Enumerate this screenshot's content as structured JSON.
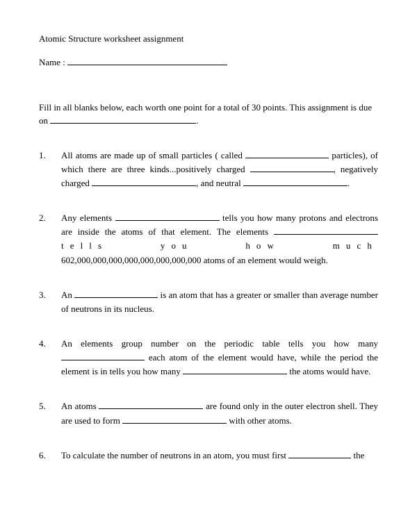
{
  "title": "Atomic Structure worksheet assignment",
  "name_label": "Name :",
  "instructions_line1": "Fill in all blanks below, each worth one point for a total of 30 points.  This",
  "instructions_line2_prefix": "assignment is due on ",
  "instructions_line2_suffix": ".",
  "questions": [
    {
      "num": "1.",
      "seg1": "All atoms are made up of small particles ( called ",
      "seg2": " particles), of which there are three kinds...positively charged ",
      "seg3": ", negatively charged ",
      "seg4": ", and neutral ",
      "seg5": "."
    },
    {
      "num": "2.",
      "seg1": "Any elements ",
      "seg2": " tells you how many protons and electrons are inside the atoms of that element.  The elements ",
      "seg3_spaced": " tells you how much",
      "seg4": " 602,000,000,000,000,000,000,000,000 atoms of an element would weigh."
    },
    {
      "num": "3.",
      "seg1": "An ",
      "seg2": " is an atom that has a greater or smaller than average number of neutrons in its nucleus."
    },
    {
      "num": "4.",
      "seg1": "An elements group number on the periodic table tells you how many ",
      "seg2": " each atom of the element would have, while the period the element is in tells you how many ",
      "seg3": " the atoms would have."
    },
    {
      "num": "5.",
      "seg1": "An atoms ",
      "seg2": " are found only in the outer electron shell. They are used to form ",
      "seg3": " with other atoms."
    },
    {
      "num": "6.",
      "seg1": "To calculate the number of neutrons in an atom, you must first ",
      "seg2": " the"
    }
  ]
}
